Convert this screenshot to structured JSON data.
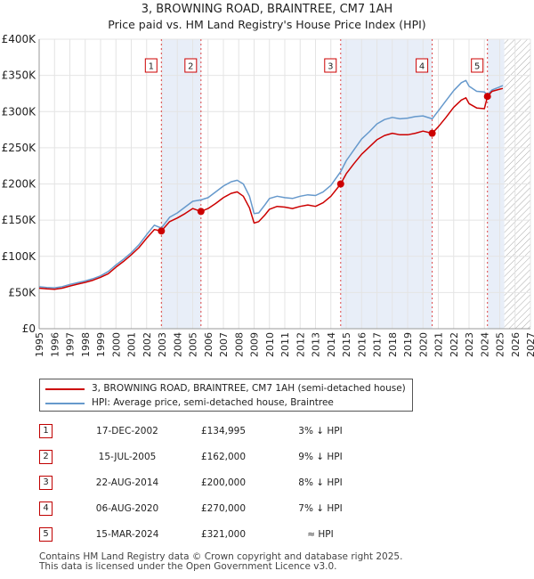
{
  "title": "3, BROWNING ROAD, BRAINTREE, CM7 1AH",
  "subtitle": "Price paid vs. HM Land Registry's House Price Index (HPI)",
  "colors": {
    "property_line": "#cc0000",
    "hpi_line": "#6699cc",
    "sale_shade": "#e8eef8",
    "marker_border": "#cc0000",
    "future_hatch": "#999999"
  },
  "chart_data": {
    "type": "line",
    "title": "3, BROWNING ROAD, BRAINTREE, CM7 1AH",
    "subtitle": "Price paid vs. HM Land Registry's House Price Index (HPI)",
    "xlim": [
      1995,
      2027
    ],
    "ylim": [
      0,
      400000
    ],
    "x_ticks": [
      "1995",
      "1996",
      "1997",
      "1998",
      "1999",
      "2000",
      "2001",
      "2002",
      "2003",
      "2004",
      "2005",
      "2006",
      "2007",
      "2008",
      "2009",
      "2010",
      "2011",
      "2012",
      "2013",
      "2014",
      "2015",
      "2016",
      "2017",
      "2018",
      "2019",
      "2020",
      "2021",
      "2022",
      "2023",
      "2024",
      "2025",
      "2026",
      "2027"
    ],
    "y_ticks": [
      {
        "value": 0,
        "label": "£0"
      },
      {
        "value": 50000,
        "label": "£50K"
      },
      {
        "value": 100000,
        "label": "£100K"
      },
      {
        "value": 150000,
        "label": "£150K"
      },
      {
        "value": 200000,
        "label": "£200K"
      },
      {
        "value": 250000,
        "label": "£250K"
      },
      {
        "value": 300000,
        "label": "£300K"
      },
      {
        "value": 350000,
        "label": "£350K"
      },
      {
        "value": 400000,
        "label": "£400K"
      }
    ],
    "grid": true,
    "forecast_start": 2025.3,
    "series": [
      {
        "name": "HPI: Average price, semi-detached house, Braintree",
        "x": [
          1995.0,
          1995.5,
          1996.0,
          1996.5,
          1997.0,
          1997.5,
          1998.0,
          1998.5,
          1999.0,
          1999.5,
          2000.0,
          2000.5,
          2001.0,
          2001.5,
          2002.0,
          2002.5,
          2002.96,
          2003.5,
          2004.0,
          2004.5,
          2005.0,
          2005.54,
          2006.0,
          2006.5,
          2007.0,
          2007.5,
          2007.9,
          2008.3,
          2008.7,
          2009.0,
          2009.3,
          2009.7,
          2010.0,
          2010.5,
          2011.0,
          2011.5,
          2012.0,
          2012.5,
          2013.0,
          2013.5,
          2014.0,
          2014.64,
          2015.0,
          2015.5,
          2016.0,
          2016.5,
          2017.0,
          2017.5,
          2018.0,
          2018.5,
          2019.0,
          2019.5,
          2020.0,
          2020.6,
          2021.0,
          2021.5,
          2022.0,
          2022.5,
          2022.8,
          2023.0,
          2023.5,
          2024.0,
          2024.2,
          2024.5,
          2025.0,
          2025.2
        ],
        "y": [
          58000,
          57000,
          56500,
          58000,
          61000,
          63500,
          66000,
          69000,
          73000,
          79000,
          88000,
          96000,
          105000,
          116000,
          130000,
          143000,
          139000,
          154000,
          160000,
          168000,
          176000,
          178000,
          181000,
          189000,
          197000,
          203000,
          205000,
          200000,
          183000,
          159000,
          160000,
          171000,
          180000,
          183000,
          181000,
          180000,
          183000,
          185000,
          184000,
          189000,
          198000,
          217000,
          232000,
          247000,
          262000,
          272000,
          283000,
          289000,
          292000,
          290000,
          291000,
          293000,
          294000,
          290000,
          301000,
          315000,
          329000,
          340000,
          343000,
          335000,
          328000,
          327000,
          323000,
          330000,
          334000,
          336000
        ]
      },
      {
        "name": "3, BROWNING ROAD, BRAINTREE, CM7 1AH (semi-detached house)",
        "x": [
          1995.0,
          1995.5,
          1996.0,
          1996.5,
          1997.0,
          1997.5,
          1998.0,
          1998.5,
          1999.0,
          1999.5,
          2000.0,
          2000.5,
          2001.0,
          2001.5,
          2002.0,
          2002.5,
          2002.96,
          2003.5,
          2004.0,
          2004.5,
          2005.0,
          2005.54,
          2006.0,
          2006.5,
          2007.0,
          2007.5,
          2007.9,
          2008.3,
          2008.7,
          2009.0,
          2009.3,
          2009.7,
          2010.0,
          2010.5,
          2011.0,
          2011.5,
          2012.0,
          2012.5,
          2013.0,
          2013.5,
          2014.0,
          2014.64,
          2015.0,
          2015.5,
          2016.0,
          2016.5,
          2017.0,
          2017.5,
          2018.0,
          2018.5,
          2019.0,
          2019.5,
          2020.0,
          2020.6,
          2021.0,
          2021.5,
          2022.0,
          2022.5,
          2022.8,
          2023.0,
          2023.5,
          2024.0,
          2024.2,
          2024.5,
          2025.0,
          2025.2
        ],
        "y": [
          56000,
          55000,
          54500,
          56000,
          59000,
          61500,
          64000,
          67000,
          71000,
          76000,
          85000,
          93000,
          102000,
          112000,
          125000,
          137000,
          134995,
          148000,
          153000,
          159000,
          166000,
          162000,
          166000,
          173000,
          181000,
          187000,
          189000,
          183000,
          167000,
          146000,
          148000,
          157000,
          165000,
          169000,
          168000,
          166000,
          169000,
          171000,
          169000,
          174000,
          183000,
          200000,
          214000,
          228000,
          241000,
          251000,
          261000,
          267000,
          270000,
          268000,
          268000,
          270000,
          273000,
          270000,
          279000,
          292000,
          306000,
          316000,
          319000,
          311000,
          305000,
          304000,
          321000,
          328000,
          331000,
          332000
        ]
      }
    ],
    "sales": [
      {
        "num": "1",
        "x": 2002.96,
        "price": 134995
      },
      {
        "num": "2",
        "x": 2005.54,
        "price": 162000
      },
      {
        "num": "3",
        "x": 2014.64,
        "price": 200000
      },
      {
        "num": "4",
        "x": 2020.6,
        "price": 270000
      },
      {
        "num": "5",
        "x": 2024.2,
        "price": 321000
      }
    ]
  },
  "legend": {
    "property_label": "3, BROWNING ROAD, BRAINTREE, CM7 1AH (semi-detached house)",
    "hpi_label": "HPI: Average price, semi-detached house, Braintree"
  },
  "transactions": [
    {
      "num": "1",
      "date": "17-DEC-2002",
      "price": "£134,995",
      "hpi": "3% ↓ HPI"
    },
    {
      "num": "2",
      "date": "15-JUL-2005",
      "price": "£162,000",
      "hpi": "9% ↓ HPI"
    },
    {
      "num": "3",
      "date": "22-AUG-2014",
      "price": "£200,000",
      "hpi": "8% ↓ HPI"
    },
    {
      "num": "4",
      "date": "06-AUG-2020",
      "price": "£270,000",
      "hpi": "7% ↓ HPI"
    },
    {
      "num": "5",
      "date": "15-MAR-2024",
      "price": "£321,000",
      "hpi": "≈ HPI"
    }
  ],
  "footer": {
    "line1": "Contains HM Land Registry data © Crown copyright and database right 2025.",
    "line2": "This data is licensed under the Open Government Licence v3.0."
  }
}
